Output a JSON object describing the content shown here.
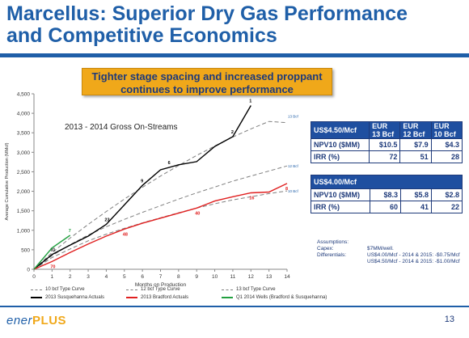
{
  "title": {
    "line1": "Marcellus:  Superior Dry Gas Performance",
    "line2": "and Competitive Economics"
  },
  "callout": {
    "line1": "Tighter stage spacing and increased proppant",
    "line2": "continues to improve performance"
  },
  "chart_data": {
    "type": "line",
    "title": "2013 - 2014 Gross On-Streams",
    "xlabel": "Months on Production",
    "ylabel": "Average Cumulative Production (MMcf)",
    "xlim": [
      0,
      14
    ],
    "ylim": [
      0,
      4500
    ],
    "x_ticks": [
      "0",
      "1",
      "2",
      "3",
      "4",
      "5",
      "6",
      "7",
      "8",
      "9",
      "10",
      "11",
      "12",
      "13",
      "14"
    ],
    "y_ticks": [
      "0",
      "500",
      "1,000",
      "1,500",
      "2,000",
      "2,500",
      "3,000",
      "3,500",
      "4,000",
      "4,500"
    ],
    "grid": false,
    "legend_position": "bottom",
    "series": [
      {
        "name": "10 bcf Type Curve",
        "style": "dashed",
        "color": "#7f7f7f",
        "end_label": "10 Bcf",
        "x": [
          0,
          1,
          2,
          3,
          4,
          5,
          6,
          7,
          8,
          9,
          10,
          11,
          12,
          13,
          14
        ],
        "y": [
          0,
          300,
          520,
          730,
          900,
          1050,
          1190,
          1320,
          1450,
          1570,
          1680,
          1780,
          1860,
          1940,
          2010
        ]
      },
      {
        "name": "12 bcf Type Curve",
        "style": "dashed",
        "color": "#7f7f7f",
        "end_label": "12 Bcf",
        "x": [
          0,
          1,
          2,
          3,
          4,
          5,
          6,
          7,
          8,
          9,
          10,
          11,
          12,
          13,
          14
        ],
        "y": [
          0,
          350,
          630,
          880,
          1090,
          1280,
          1460,
          1630,
          1800,
          1960,
          2110,
          2260,
          2390,
          2520,
          2650
        ]
      },
      {
        "name": "13 bcf Type Curve",
        "style": "dashed",
        "color": "#7f7f7f",
        "end_label": "13 Bcf",
        "x": [
          0,
          1,
          2,
          3,
          4,
          5,
          6,
          7,
          8,
          9,
          10,
          11,
          12,
          13,
          14
        ],
        "y": [
          0,
          430,
          800,
          1150,
          1480,
          1800,
          2100,
          2390,
          2660,
          2920,
          3160,
          3390,
          3600,
          3790,
          3760
        ]
      },
      {
        "name": "2013 Susquehanna Actuals",
        "style": "solid",
        "color": "#000000",
        "x": [
          0,
          1,
          2,
          3,
          4,
          5,
          6,
          7,
          8,
          9,
          10,
          11,
          12
        ],
        "y": [
          0,
          380,
          620,
          850,
          1150,
          1650,
          2150,
          2550,
          2680,
          2760,
          3150,
          3400,
          4200
        ],
        "labels": [
          [
            1,
            "31"
          ],
          [
            4,
            "23"
          ],
          [
            6,
            "9"
          ],
          [
            7.5,
            "6"
          ],
          [
            11,
            "2"
          ],
          [
            12,
            "1"
          ]
        ]
      },
      {
        "name": "2013 Bradford Actuals",
        "style": "solid",
        "color": "#e02020",
        "x": [
          0,
          1,
          2,
          3,
          4,
          5,
          6,
          7,
          8,
          9,
          10,
          11,
          12,
          13,
          14
        ],
        "y": [
          0,
          200,
          430,
          650,
          850,
          1030,
          1180,
          1310,
          1440,
          1570,
          1750,
          1860,
          1960,
          1980,
          2200
        ],
        "labels": [
          [
            1,
            "70"
          ],
          [
            5,
            "48"
          ],
          [
            9,
            "40"
          ],
          [
            12,
            "16"
          ],
          [
            14,
            "8"
          ]
        ]
      },
      {
        "name": "Q1 2014 Wells (Bradford & Susquehanna)",
        "style": "solid",
        "color": "#22a040",
        "x": [
          0,
          1,
          2
        ],
        "y": [
          0,
          550,
          870
        ],
        "labels": [
          [
            2,
            "7"
          ]
        ]
      }
    ]
  },
  "economics": {
    "table1": {
      "price": "US$4.50/Mcf",
      "eur_headers": [
        [
          "EUR",
          "13 Bcf"
        ],
        [
          "EUR",
          "12 Bcf"
        ],
        [
          "EUR",
          "10 Bcf"
        ]
      ],
      "rows": [
        {
          "label": "NPV10 ($MM)",
          "values": [
            "$10.5",
            "$7.9",
            "$4.3"
          ]
        },
        {
          "label": "IRR (%)",
          "values": [
            "72",
            "51",
            "28"
          ]
        }
      ]
    },
    "table2": {
      "price": "US$4.00/Mcf",
      "rows": [
        {
          "label": "NPV10 ($MM)",
          "values": [
            "$8.3",
            "$5.8",
            "$2.8"
          ]
        },
        {
          "label": "IRR (%)",
          "values": [
            "60",
            "41",
            "22"
          ]
        }
      ]
    }
  },
  "assumptions": {
    "heading": "Assumptions:",
    "capex_label": "Capex:",
    "capex_value": "$7MM/well.",
    "diff_label": "Differentials:",
    "diff_line1": "US$4.00/Mcf - 2014 & 2015: -$0.75/Mcf",
    "diff_line2": "US$4.50/Mcf - 2014 & 2015: -$1.00/Mcf"
  },
  "footer": {
    "logo_part1": "ener",
    "logo_part2": "PLUS",
    "page_number": "13"
  },
  "colors": {
    "title_blue": "#1f5fa8",
    "callout_orange": "#f0a81a",
    "table_header_blue": "#1f4fa0",
    "susquehanna": "#000000",
    "bradford": "#e02020",
    "q1_2014": "#22a040",
    "type_curve": "#7f7f7f"
  }
}
